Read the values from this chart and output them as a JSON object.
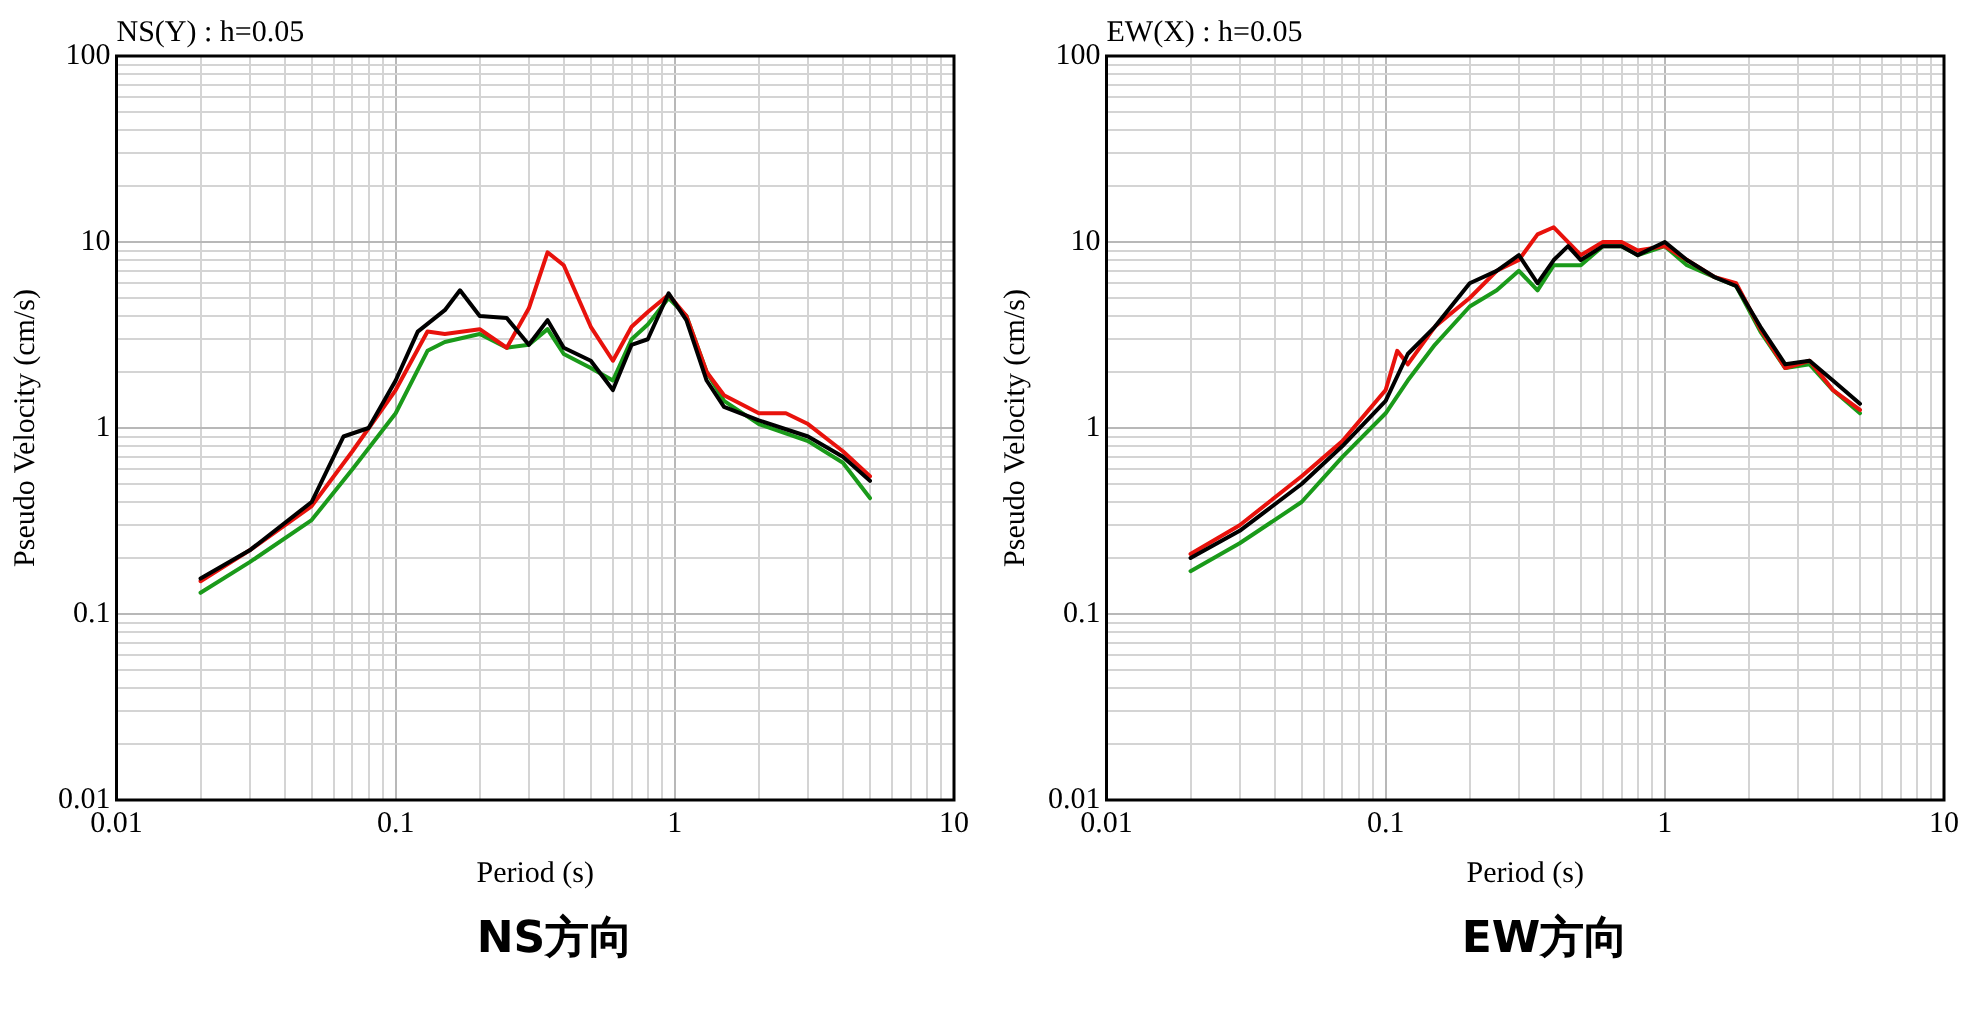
{
  "chart_data": [
    {
      "type": "line",
      "title": "NS(Y) : h=0.05",
      "xlabel": "Period (s)",
      "ylabel": "Pseudo Velocity (cm/s)",
      "annotations": [
        "NS方向"
      ],
      "log": "xy",
      "grid": true,
      "legend": false,
      "marker": "none",
      "line_style": "solid",
      "xlim": [
        0.01,
        10
      ],
      "xticks": [
        0.01,
        0.1,
        1,
        10
      ],
      "ylim": [
        0.01,
        100
      ],
      "yticks": [
        0.01,
        0.1,
        1,
        10,
        100
      ],
      "series": [
        {
          "color": "#000000",
          "x": [
            0.02,
            0.03,
            0.05,
            0.065,
            0.08,
            0.1,
            0.12,
            0.15,
            0.17,
            0.2,
            0.25,
            0.3,
            0.35,
            0.4,
            0.5,
            0.6,
            0.7,
            0.8,
            0.95,
            1.1,
            1.3,
            1.5,
            2,
            3,
            4,
            5
          ],
          "values": [
            0.155,
            0.22,
            0.4,
            0.9,
            1.0,
            1.8,
            3.3,
            4.3,
            5.5,
            4,
            3.9,
            2.8,
            3.8,
            2.7,
            2.3,
            1.6,
            2.8,
            3,
            5.3,
            3.8,
            1.8,
            1.3,
            1.1,
            0.9,
            0.7,
            0.52
          ]
        },
        {
          "color": "#e8120c",
          "x": [
            0.02,
            0.03,
            0.05,
            0.07,
            0.1,
            0.13,
            0.15,
            0.2,
            0.25,
            0.3,
            0.35,
            0.4,
            0.5,
            0.6,
            0.7,
            0.8,
            0.95,
            1.1,
            1.3,
            1.5,
            2,
            2.5,
            3,
            4,
            5
          ],
          "values": [
            0.15,
            0.22,
            0.38,
            0.75,
            1.6,
            3.3,
            3.2,
            3.4,
            2.7,
            4.4,
            8.8,
            7.5,
            3.5,
            2.3,
            3.5,
            4.2,
            5.2,
            4,
            2,
            1.5,
            1.2,
            1.2,
            1.05,
            0.75,
            0.55
          ]
        },
        {
          "color": "#1a9a1a",
          "x": [
            0.02,
            0.03,
            0.05,
            0.07,
            0.1,
            0.13,
            0.15,
            0.2,
            0.25,
            0.3,
            0.35,
            0.4,
            0.5,
            0.6,
            0.7,
            0.8,
            0.95,
            1.1,
            1.3,
            1.5,
            2,
            3,
            4,
            5
          ],
          "values": [
            0.13,
            0.19,
            0.32,
            0.6,
            1.2,
            2.6,
            2.9,
            3.2,
            2.7,
            2.8,
            3.4,
            2.5,
            2.1,
            1.8,
            3,
            3.6,
            5,
            4,
            2,
            1.4,
            1.05,
            0.85,
            0.65,
            0.42
          ]
        }
      ]
    },
    {
      "type": "line",
      "title": "EW(X) : h=0.05",
      "xlabel": "Period (s)",
      "ylabel": "Pseudo Velocity (cm/s)",
      "annotations": [
        "EW方向"
      ],
      "log": "xy",
      "grid": true,
      "legend": false,
      "marker": "none",
      "line_style": "solid",
      "xlim": [
        0.01,
        10
      ],
      "xticks": [
        0.01,
        0.1,
        1,
        10
      ],
      "ylim": [
        0.01,
        100
      ],
      "yticks": [
        0.01,
        0.1,
        1,
        10,
        100
      ],
      "series": [
        {
          "color": "#000000",
          "x": [
            0.02,
            0.03,
            0.05,
            0.07,
            0.1,
            0.12,
            0.15,
            0.2,
            0.25,
            0.3,
            0.35,
            0.4,
            0.45,
            0.5,
            0.6,
            0.7,
            0.8,
            1.0,
            1.2,
            1.5,
            1.8,
            2.2,
            2.7,
            3.3,
            4,
            5
          ],
          "values": [
            0.2,
            0.28,
            0.5,
            0.8,
            1.4,
            2.5,
            3.5,
            6,
            7,
            8.5,
            6,
            8,
            9.5,
            8,
            9.5,
            9.5,
            8.5,
            10,
            8,
            6.5,
            5.8,
            3.5,
            2.2,
            2.3,
            1.8,
            1.35
          ]
        },
        {
          "color": "#e8120c",
          "x": [
            0.02,
            0.03,
            0.05,
            0.07,
            0.1,
            0.11,
            0.12,
            0.15,
            0.2,
            0.25,
            0.3,
            0.35,
            0.4,
            0.5,
            0.6,
            0.7,
            0.8,
            1.0,
            1.2,
            1.5,
            1.8,
            2.2,
            2.7,
            3.3,
            4,
            5
          ],
          "values": [
            0.21,
            0.3,
            0.55,
            0.85,
            1.6,
            2.6,
            2.2,
            3.5,
            5,
            7,
            8,
            11,
            12,
            8.5,
            10,
            10,
            9,
            9.5,
            8,
            6.5,
            6,
            3.4,
            2.1,
            2.3,
            1.6,
            1.25
          ]
        },
        {
          "color": "#1a9a1a",
          "x": [
            0.02,
            0.03,
            0.05,
            0.07,
            0.1,
            0.12,
            0.15,
            0.2,
            0.25,
            0.3,
            0.35,
            0.4,
            0.5,
            0.6,
            0.7,
            0.8,
            1.0,
            1.2,
            1.5,
            1.8,
            2.2,
            2.7,
            3.3,
            4,
            5
          ],
          "values": [
            0.17,
            0.24,
            0.4,
            0.7,
            1.2,
            1.8,
            2.8,
            4.5,
            5.5,
            7,
            5.5,
            7.5,
            7.5,
            9.5,
            9.5,
            8.5,
            9.5,
            7.5,
            6.5,
            5.8,
            3.3,
            2.1,
            2.2,
            1.6,
            1.2
          ]
        }
      ]
    }
  ]
}
